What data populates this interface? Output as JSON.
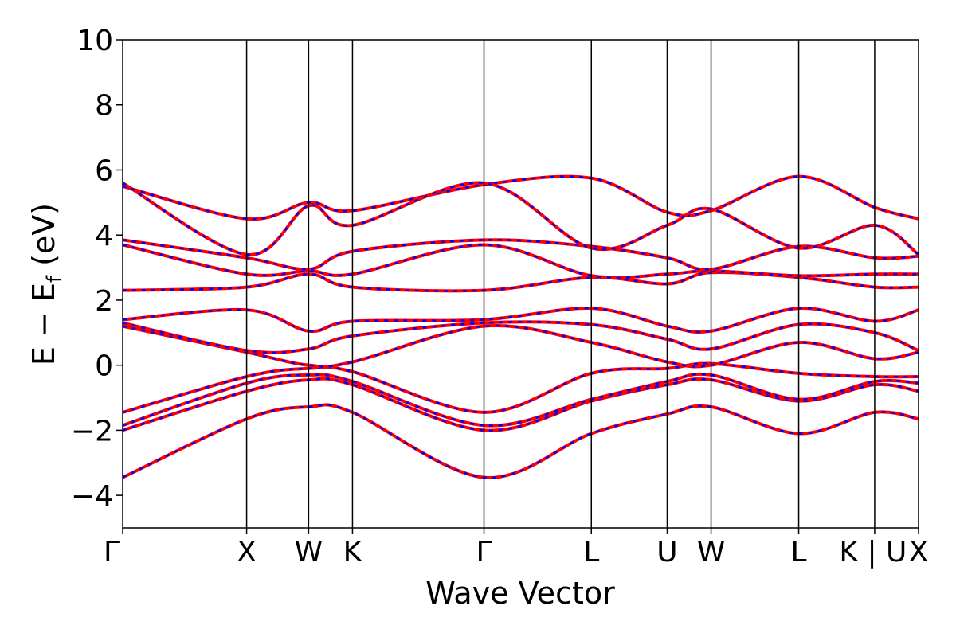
{
  "chart_data": {
    "type": "line",
    "title": "",
    "xlabel": "Wave Vector",
    "ylabel_main": "E − E",
    "ylabel_sub": "f",
    "ylabel_unit": " (eV)",
    "ylim": [
      -5,
      10
    ],
    "yticks": [
      -4,
      -2,
      0,
      2,
      4,
      6,
      8,
      10
    ],
    "ytick_labels": [
      "−4",
      "−2",
      "0",
      "2",
      "4",
      "6",
      "8",
      "10"
    ],
    "kpath": [
      {
        "label": "Γ",
        "x": 0.0
      },
      {
        "label": "X",
        "x": 1.0
      },
      {
        "label": "W",
        "x": 1.5
      },
      {
        "label": "K",
        "x": 1.854
      },
      {
        "label": "Γ",
        "x": 2.915
      },
      {
        "label": "L",
        "x": 3.781
      },
      {
        "label": "U",
        "x": 4.393
      },
      {
        "label": "W",
        "x": 4.747
      },
      {
        "label": "L",
        "x": 5.454
      },
      {
        "label": "K | U",
        "x": 6.067
      },
      {
        "label": "X",
        "x": 6.421
      }
    ],
    "xlim": [
      0,
      6.421
    ],
    "grid": false,
    "legend": "none",
    "series_colors": {
      "primary": "#ff0000",
      "overlay": "#0000ff"
    },
    "series": [
      {
        "values": [
          [
            0,
            -3.45
          ],
          [
            1.0,
            -1.65
          ],
          [
            1.5,
            -1.28
          ],
          [
            1.854,
            -1.45
          ],
          [
            2.915,
            -3.45
          ],
          [
            3.781,
            -2.1
          ],
          [
            4.393,
            -1.5
          ],
          [
            4.747,
            -1.28
          ],
          [
            5.454,
            -2.1
          ],
          [
            6.067,
            -1.45
          ],
          [
            6.421,
            -1.65
          ]
        ]
      },
      {
        "values": [
          [
            0,
            -2.0
          ],
          [
            1.0,
            -0.8
          ],
          [
            1.5,
            -0.45
          ],
          [
            1.854,
            -0.6
          ],
          [
            2.915,
            -2.0
          ],
          [
            3.781,
            -1.1
          ],
          [
            4.393,
            -0.6
          ],
          [
            4.747,
            -0.45
          ],
          [
            5.454,
            -1.1
          ],
          [
            6.067,
            -0.6
          ],
          [
            6.421,
            -0.8
          ]
        ]
      },
      {
        "values": [
          [
            0,
            -1.85
          ],
          [
            1.0,
            -0.55
          ],
          [
            1.5,
            -0.3
          ],
          [
            1.854,
            -0.5
          ],
          [
            2.915,
            -1.85
          ],
          [
            3.781,
            -1.05
          ],
          [
            4.393,
            -0.5
          ],
          [
            4.747,
            -0.3
          ],
          [
            5.454,
            -1.05
          ],
          [
            6.067,
            -0.5
          ],
          [
            6.421,
            -0.55
          ]
        ]
      },
      {
        "values": [
          [
            0,
            -1.45
          ],
          [
            1.0,
            -0.35
          ],
          [
            1.5,
            -0.1
          ],
          [
            1.854,
            -0.2
          ],
          [
            2.915,
            -1.45
          ],
          [
            3.781,
            -0.25
          ],
          [
            4.393,
            -0.1
          ],
          [
            4.747,
            0.05
          ],
          [
            5.454,
            -0.25
          ],
          [
            6.067,
            -0.35
          ],
          [
            6.421,
            -0.35
          ]
        ]
      },
      {
        "values": [
          [
            0,
            1.2
          ],
          [
            1.0,
            0.4
          ],
          [
            1.5,
            0.0
          ],
          [
            1.854,
            0.1
          ],
          [
            2.915,
            1.2
          ],
          [
            3.781,
            0.7
          ],
          [
            4.393,
            0.1
          ],
          [
            4.747,
            0.0
          ],
          [
            5.454,
            0.7
          ],
          [
            6.067,
            0.2
          ],
          [
            6.421,
            0.4
          ]
        ]
      },
      {
        "values": [
          [
            0,
            1.3
          ],
          [
            1.0,
            0.45
          ],
          [
            1.5,
            0.5
          ],
          [
            1.854,
            0.9
          ],
          [
            2.915,
            1.3
          ],
          [
            3.781,
            1.25
          ],
          [
            4.393,
            0.8
          ],
          [
            4.747,
            0.5
          ],
          [
            5.454,
            1.25
          ],
          [
            6.067,
            1.0
          ],
          [
            6.421,
            0.45
          ]
        ]
      },
      {
        "values": [
          [
            0,
            1.4
          ],
          [
            1.0,
            1.7
          ],
          [
            1.5,
            1.05
          ],
          [
            1.854,
            1.35
          ],
          [
            2.915,
            1.4
          ],
          [
            3.781,
            1.75
          ],
          [
            4.393,
            1.2
          ],
          [
            4.747,
            1.05
          ],
          [
            5.454,
            1.75
          ],
          [
            6.067,
            1.35
          ],
          [
            6.421,
            1.7
          ]
        ]
      },
      {
        "values": [
          [
            0,
            2.3
          ],
          [
            1.0,
            2.4
          ],
          [
            1.5,
            2.8
          ],
          [
            1.854,
            2.4
          ],
          [
            2.915,
            2.3
          ],
          [
            3.781,
            2.7
          ],
          [
            4.393,
            2.5
          ],
          [
            4.747,
            2.85
          ],
          [
            5.454,
            2.7
          ],
          [
            6.067,
            2.4
          ],
          [
            6.421,
            2.4
          ]
        ]
      },
      {
        "values": [
          [
            0,
            3.7
          ],
          [
            1.0,
            2.8
          ],
          [
            1.5,
            2.9
          ],
          [
            1.854,
            2.8
          ],
          [
            2.915,
            3.7
          ],
          [
            3.781,
            2.75
          ],
          [
            4.393,
            2.8
          ],
          [
            4.747,
            2.9
          ],
          [
            5.454,
            2.75
          ],
          [
            6.067,
            2.8
          ],
          [
            6.421,
            2.8
          ]
        ]
      },
      {
        "values": [
          [
            0,
            3.85
          ],
          [
            1.0,
            3.3
          ],
          [
            1.5,
            2.95
          ],
          [
            1.854,
            3.5
          ],
          [
            2.915,
            3.85
          ],
          [
            3.781,
            3.65
          ],
          [
            4.393,
            3.3
          ],
          [
            4.747,
            2.95
          ],
          [
            5.454,
            3.65
          ],
          [
            6.067,
            3.3
          ],
          [
            6.421,
            3.35
          ]
        ]
      },
      {
        "values": [
          [
            0,
            5.5
          ],
          [
            1.0,
            4.5
          ],
          [
            1.5,
            5.0
          ],
          [
            1.854,
            4.75
          ],
          [
            2.915,
            5.55
          ],
          [
            3.781,
            5.75
          ],
          [
            4.393,
            4.7
          ],
          [
            4.747,
            4.75
          ],
          [
            5.454,
            5.8
          ],
          [
            6.067,
            4.85
          ],
          [
            6.421,
            4.5
          ]
        ]
      },
      {
        "values": [
          [
            0,
            5.6
          ],
          [
            1.0,
            3.4
          ],
          [
            1.5,
            4.9
          ],
          [
            1.854,
            4.3
          ],
          [
            2.915,
            5.6
          ],
          [
            3.781,
            3.6
          ],
          [
            4.393,
            4.3
          ],
          [
            4.747,
            4.8
          ],
          [
            5.454,
            3.6
          ],
          [
            6.067,
            4.3
          ],
          [
            6.421,
            3.4
          ]
        ]
      }
    ]
  }
}
